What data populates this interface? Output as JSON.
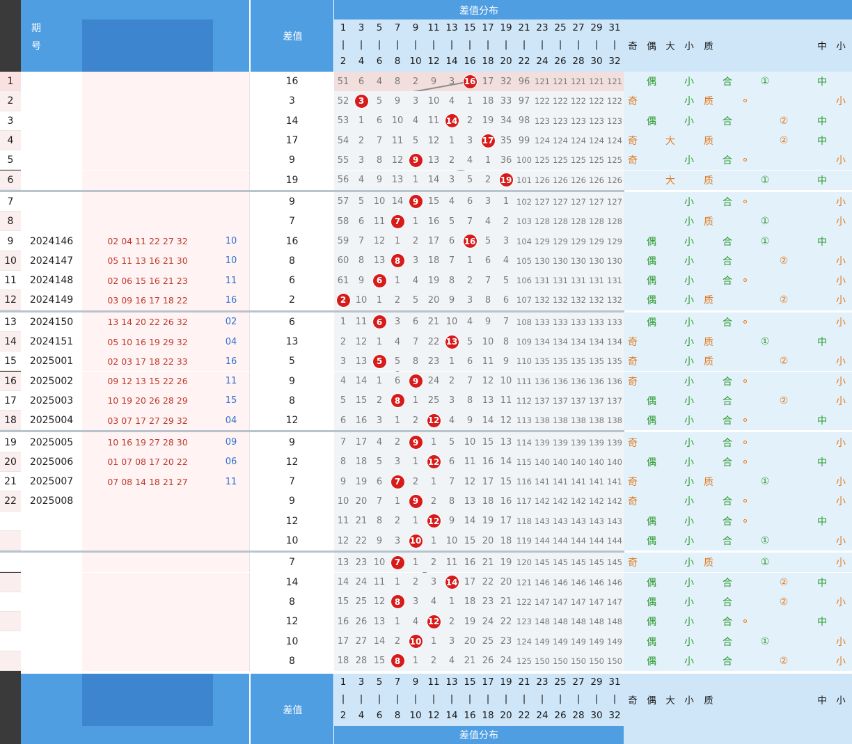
{
  "header": {
    "period_label": "期号",
    "diff_label": "差值",
    "dist_label": "差值分布",
    "cols_top": [
      "1",
      "3",
      "5",
      "7",
      "9",
      "11",
      "13",
      "15",
      "17",
      "19",
      "21",
      "23",
      "25",
      "27",
      "29",
      "31"
    ],
    "cols_bottom": [
      "2",
      "4",
      "6",
      "8",
      "10",
      "12",
      "14",
      "16",
      "18",
      "20",
      "22",
      "24",
      "26",
      "28",
      "30",
      "32"
    ],
    "right_labels": [
      "奇",
      "偶",
      "大",
      "小",
      "质",
      "",
      "",
      "",
      "中",
      "小"
    ]
  },
  "rows": [
    {
      "idx": "1",
      "period": "",
      "nums": "",
      "blue": "",
      "diff": 16,
      "miss": [
        "51",
        "6",
        "4",
        "8",
        "2",
        "9",
        "3",
        "",
        "17",
        "32",
        "96",
        "121",
        "121",
        "121",
        "121",
        "121"
      ],
      "odd": "",
      "even": "偶",
      "big": "",
      "small": "小",
      "prime": "",
      "comp": "合",
      "dot": false,
      "c1": "①",
      "c2": "",
      "mid": "中",
      "sm": ""
    },
    {
      "idx": "2",
      "period": "",
      "nums": "",
      "blue": "",
      "diff": 3,
      "miss": [
        "52",
        "",
        "5",
        "9",
        "3",
        "10",
        "4",
        "1",
        "18",
        "33",
        "97",
        "122",
        "122",
        "122",
        "122",
        "122"
      ],
      "odd": "奇",
      "even": "",
      "big": "",
      "small": "小",
      "prime": "质",
      "comp": "",
      "dot": true,
      "c1": "",
      "c2": "",
      "mid": "",
      "sm": "小"
    },
    {
      "idx": "3",
      "period": "",
      "nums": "",
      "blue": "",
      "diff": 14,
      "miss": [
        "53",
        "1",
        "6",
        "10",
        "4",
        "11",
        "",
        "2",
        "19",
        "34",
        "98",
        "123",
        "123",
        "123",
        "123",
        "123"
      ],
      "odd": "",
      "even": "偶",
      "big": "",
      "small": "小",
      "prime": "",
      "comp": "合",
      "dot": false,
      "c1": "",
      "c2": "②",
      "mid": "中",
      "sm": ""
    },
    {
      "idx": "4",
      "period": "",
      "nums": "",
      "blue": "",
      "diff": 17,
      "miss": [
        "54",
        "2",
        "7",
        "11",
        "5",
        "12",
        "1",
        "3",
        "",
        "35",
        "99",
        "124",
        "124",
        "124",
        "124",
        "124"
      ],
      "odd": "奇",
      "even": "",
      "big": "大",
      "small": "",
      "prime": "质",
      "comp": "",
      "dot": false,
      "c1": "",
      "c2": "②",
      "mid": "中",
      "sm": ""
    },
    {
      "idx": "5",
      "period": "",
      "nums": "",
      "blue": "",
      "diff": 9,
      "miss": [
        "55",
        "3",
        "8",
        "12",
        "",
        "13",
        "2",
        "4",
        "1",
        "36",
        "100",
        "125",
        "125",
        "125",
        "125",
        "125"
      ],
      "odd": "奇",
      "even": "",
      "big": "",
      "small": "小",
      "prime": "",
      "comp": "合",
      "dot": true,
      "c1": "",
      "c2": "",
      "mid": "",
      "sm": "小"
    },
    {
      "idx": "6",
      "period": "",
      "nums": "",
      "blue": "",
      "diff": 19,
      "miss": [
        "56",
        "4",
        "9",
        "13",
        "1",
        "14",
        "3",
        "5",
        "2",
        "",
        "101",
        "126",
        "126",
        "126",
        "126",
        "126"
      ],
      "odd": "",
      "even": "",
      "big": "大",
      "small": "",
      "prime": "质",
      "comp": "",
      "dot": false,
      "c1": "①",
      "c2": "",
      "mid": "中",
      "sm": ""
    },
    {
      "idx": "7",
      "period": "",
      "nums": "",
      "blue": "",
      "diff": 9,
      "miss": [
        "57",
        "5",
        "10",
        "14",
        "",
        "15",
        "4",
        "6",
        "3",
        "1",
        "102",
        "127",
        "127",
        "127",
        "127",
        "127"
      ],
      "odd": "",
      "even": "",
      "big": "",
      "small": "小",
      "prime": "",
      "comp": "合",
      "dot": true,
      "c1": "",
      "c2": "",
      "mid": "",
      "sm": "小"
    },
    {
      "idx": "8",
      "period": "",
      "nums": "",
      "blue": "",
      "diff": 7,
      "miss": [
        "58",
        "6",
        "11",
        "",
        "1",
        "16",
        "5",
        "7",
        "4",
        "2",
        "103",
        "128",
        "128",
        "128",
        "128",
        "128"
      ],
      "odd": "",
      "even": "",
      "big": "",
      "small": "小",
      "prime": "质",
      "comp": "",
      "dot": false,
      "c1": "①",
      "c2": "",
      "mid": "",
      "sm": "小"
    },
    {
      "idx": "9",
      "period": "2024146",
      "nums": "02 04 11 22 27 32",
      "blue": "10",
      "diff": 16,
      "miss": [
        "59",
        "7",
        "12",
        "1",
        "2",
        "17",
        "6",
        "",
        "5",
        "3",
        "104",
        "129",
        "129",
        "129",
        "129",
        "129"
      ],
      "odd": "",
      "even": "偶",
      "big": "",
      "small": "小",
      "prime": "",
      "comp": "合",
      "dot": false,
      "c1": "①",
      "c2": "",
      "mid": "中",
      "sm": ""
    },
    {
      "idx": "10",
      "period": "2024147",
      "nums": "05 11 13 16 21 30",
      "blue": "10",
      "diff": 8,
      "miss": [
        "60",
        "8",
        "13",
        "",
        "3",
        "18",
        "7",
        "1",
        "6",
        "4",
        "105",
        "130",
        "130",
        "130",
        "130",
        "130"
      ],
      "odd": "",
      "even": "偶",
      "big": "",
      "small": "小",
      "prime": "",
      "comp": "合",
      "dot": false,
      "c1": "",
      "c2": "②",
      "mid": "",
      "sm": "小"
    },
    {
      "idx": "11",
      "period": "2024148",
      "nums": "02 06 15 16 21 23",
      "blue": "11",
      "diff": 6,
      "miss": [
        "61",
        "9",
        "",
        "1",
        "4",
        "19",
        "8",
        "2",
        "7",
        "5",
        "106",
        "131",
        "131",
        "131",
        "131",
        "131"
      ],
      "odd": "",
      "even": "偶",
      "big": "",
      "small": "小",
      "prime": "",
      "comp": "合",
      "dot": true,
      "c1": "",
      "c2": "",
      "mid": "",
      "sm": "小"
    },
    {
      "idx": "12",
      "period": "2024149",
      "nums": "03 09 16 17 18 22",
      "blue": "16",
      "diff": 2,
      "miss": [
        "",
        "10",
        "1",
        "2",
        "5",
        "20",
        "9",
        "3",
        "8",
        "6",
        "107",
        "132",
        "132",
        "132",
        "132",
        "132"
      ],
      "odd": "",
      "even": "偶",
      "big": "",
      "small": "小",
      "prime": "质",
      "comp": "",
      "dot": false,
      "c1": "",
      "c2": "②",
      "mid": "",
      "sm": "小"
    },
    {
      "idx": "13",
      "period": "2024150",
      "nums": "13 14 20 22 26 32",
      "blue": "02",
      "diff": 6,
      "miss": [
        "1",
        "11",
        "",
        "3",
        "6",
        "21",
        "10",
        "4",
        "9",
        "7",
        "108",
        "133",
        "133",
        "133",
        "133",
        "133"
      ],
      "odd": "",
      "even": "偶",
      "big": "",
      "small": "小",
      "prime": "",
      "comp": "合",
      "dot": true,
      "c1": "",
      "c2": "",
      "mid": "",
      "sm": "小"
    },
    {
      "idx": "14",
      "period": "2024151",
      "nums": "05 10 16 19 29 32",
      "blue": "04",
      "diff": 13,
      "miss": [
        "2",
        "12",
        "1",
        "4",
        "7",
        "22",
        "",
        "5",
        "10",
        "8",
        "109",
        "134",
        "134",
        "134",
        "134",
        "134"
      ],
      "odd": "奇",
      "even": "",
      "big": "",
      "small": "小",
      "prime": "质",
      "comp": "",
      "dot": false,
      "c1": "①",
      "c2": "",
      "mid": "中",
      "sm": ""
    },
    {
      "idx": "15",
      "period": "2025001",
      "nums": "02 03 17 18 22 33",
      "blue": "16",
      "diff": 5,
      "miss": [
        "3",
        "13",
        "",
        "5",
        "8",
        "23",
        "1",
        "6",
        "11",
        "9",
        "110",
        "135",
        "135",
        "135",
        "135",
        "135"
      ],
      "odd": "奇",
      "even": "",
      "big": "",
      "small": "小",
      "prime": "质",
      "comp": "",
      "dot": false,
      "c1": "",
      "c2": "②",
      "mid": "",
      "sm": "小"
    },
    {
      "idx": "16",
      "period": "2025002",
      "nums": "09 12 13 15 22 26",
      "blue": "11",
      "diff": 9,
      "miss": [
        "4",
        "14",
        "1",
        "6",
        "",
        "24",
        "2",
        "7",
        "12",
        "10",
        "111",
        "136",
        "136",
        "136",
        "136",
        "136"
      ],
      "odd": "奇",
      "even": "",
      "big": "",
      "small": "小",
      "prime": "",
      "comp": "合",
      "dot": true,
      "c1": "",
      "c2": "",
      "mid": "",
      "sm": "小"
    },
    {
      "idx": "17",
      "period": "2025003",
      "nums": "10 19 20 26 28 29",
      "blue": "15",
      "diff": 8,
      "miss": [
        "5",
        "15",
        "2",
        "",
        "1",
        "25",
        "3",
        "8",
        "13",
        "11",
        "112",
        "137",
        "137",
        "137",
        "137",
        "137"
      ],
      "odd": "",
      "even": "偶",
      "big": "",
      "small": "小",
      "prime": "",
      "comp": "合",
      "dot": false,
      "c1": "",
      "c2": "②",
      "mid": "",
      "sm": "小"
    },
    {
      "idx": "18",
      "period": "2025004",
      "nums": "03 07 17 27 29 32",
      "blue": "04",
      "diff": 12,
      "miss": [
        "6",
        "16",
        "3",
        "1",
        "2",
        "",
        "4",
        "9",
        "14",
        "12",
        "113",
        "138",
        "138",
        "138",
        "138",
        "138"
      ],
      "odd": "",
      "even": "偶",
      "big": "",
      "small": "小",
      "prime": "",
      "comp": "合",
      "dot": true,
      "c1": "",
      "c2": "",
      "mid": "中",
      "sm": ""
    },
    {
      "idx": "19",
      "period": "2025005",
      "nums": "10 16 19 27 28 30",
      "blue": "09",
      "diff": 9,
      "miss": [
        "7",
        "17",
        "4",
        "2",
        "",
        "1",
        "5",
        "10",
        "15",
        "13",
        "114",
        "139",
        "139",
        "139",
        "139",
        "139"
      ],
      "odd": "奇",
      "even": "",
      "big": "",
      "small": "小",
      "prime": "",
      "comp": "合",
      "dot": true,
      "c1": "",
      "c2": "",
      "mid": "",
      "sm": "小"
    },
    {
      "idx": "20",
      "period": "2025006",
      "nums": "01 07 08 17 20 22",
      "blue": "06",
      "diff": 12,
      "miss": [
        "8",
        "18",
        "5",
        "3",
        "1",
        "",
        "6",
        "11",
        "16",
        "14",
        "115",
        "140",
        "140",
        "140",
        "140",
        "140"
      ],
      "odd": "",
      "even": "偶",
      "big": "",
      "small": "小",
      "prime": "",
      "comp": "合",
      "dot": true,
      "c1": "",
      "c2": "",
      "mid": "中",
      "sm": ""
    },
    {
      "idx": "21",
      "period": "2025007",
      "nums": "07 08 14 18 21 27",
      "blue": "11",
      "diff": 7,
      "miss": [
        "9",
        "19",
        "6",
        "",
        "2",
        "1",
        "7",
        "12",
        "17",
        "15",
        "116",
        "141",
        "141",
        "141",
        "141",
        "141"
      ],
      "odd": "奇",
      "even": "",
      "big": "",
      "small": "小",
      "prime": "质",
      "comp": "",
      "dot": false,
      "c1": "①",
      "c2": "",
      "mid": "",
      "sm": "小"
    },
    {
      "idx": "22",
      "period": "2025008",
      "nums": "",
      "blue": "",
      "diff": 9,
      "miss": [
        "10",
        "20",
        "7",
        "1",
        "",
        "2",
        "8",
        "13",
        "18",
        "16",
        "117",
        "142",
        "142",
        "142",
        "142",
        "142"
      ],
      "odd": "奇",
      "even": "",
      "big": "",
      "small": "小",
      "prime": "",
      "comp": "合",
      "dot": true,
      "c1": "",
      "c2": "",
      "mid": "",
      "sm": "小"
    },
    {
      "idx": "",
      "period": "",
      "nums": "",
      "blue": "",
      "diff": 12,
      "miss": [
        "11",
        "21",
        "8",
        "2",
        "1",
        "",
        "9",
        "14",
        "19",
        "17",
        "118",
        "143",
        "143",
        "143",
        "143",
        "143"
      ],
      "odd": "",
      "even": "偶",
      "big": "",
      "small": "小",
      "prime": "",
      "comp": "合",
      "dot": true,
      "c1": "",
      "c2": "",
      "mid": "中",
      "sm": ""
    },
    {
      "idx": "",
      "period": "",
      "nums": "",
      "blue": "",
      "diff": 10,
      "miss": [
        "12",
        "22",
        "9",
        "3",
        "",
        "1",
        "10",
        "15",
        "20",
        "18",
        "119",
        "144",
        "144",
        "144",
        "144",
        "144"
      ],
      "odd": "",
      "even": "偶",
      "big": "",
      "small": "小",
      "prime": "",
      "comp": "合",
      "dot": false,
      "c1": "①",
      "c2": "",
      "mid": "",
      "sm": "小"
    },
    {
      "idx": "",
      "period": "",
      "nums": "",
      "blue": "",
      "diff": 7,
      "miss": [
        "13",
        "23",
        "10",
        "",
        "1",
        "2",
        "11",
        "16",
        "21",
        "19",
        "120",
        "145",
        "145",
        "145",
        "145",
        "145"
      ],
      "odd": "奇",
      "even": "",
      "big": "",
      "small": "小",
      "prime": "质",
      "comp": "",
      "dot": false,
      "c1": "①",
      "c2": "",
      "mid": "",
      "sm": "小"
    },
    {
      "idx": "",
      "period": "",
      "nums": "",
      "blue": "",
      "diff": 14,
      "miss": [
        "14",
        "24",
        "11",
        "1",
        "2",
        "3",
        "",
        "17",
        "22",
        "20",
        "121",
        "146",
        "146",
        "146",
        "146",
        "146"
      ],
      "odd": "",
      "even": "偶",
      "big": "",
      "small": "小",
      "prime": "",
      "comp": "合",
      "dot": false,
      "c1": "",
      "c2": "②",
      "mid": "中",
      "sm": ""
    },
    {
      "idx": "",
      "period": "",
      "nums": "",
      "blue": "",
      "diff": 8,
      "miss": [
        "15",
        "25",
        "12",
        "",
        "3",
        "4",
        "1",
        "18",
        "23",
        "21",
        "122",
        "147",
        "147",
        "147",
        "147",
        "147"
      ],
      "odd": "",
      "even": "偶",
      "big": "",
      "small": "小",
      "prime": "",
      "comp": "合",
      "dot": false,
      "c1": "",
      "c2": "②",
      "mid": "",
      "sm": "小"
    },
    {
      "idx": "",
      "period": "",
      "nums": "",
      "blue": "",
      "diff": 12,
      "miss": [
        "16",
        "26",
        "13",
        "1",
        "4",
        "",
        "2",
        "19",
        "24",
        "22",
        "123",
        "148",
        "148",
        "148",
        "148",
        "148"
      ],
      "odd": "",
      "even": "偶",
      "big": "",
      "small": "小",
      "prime": "",
      "comp": "合",
      "dot": true,
      "c1": "",
      "c2": "",
      "mid": "中",
      "sm": ""
    },
    {
      "idx": "",
      "period": "",
      "nums": "",
      "blue": "",
      "diff": 10,
      "miss": [
        "17",
        "27",
        "14",
        "2",
        "",
        "1",
        "3",
        "20",
        "25",
        "23",
        "124",
        "149",
        "149",
        "149",
        "149",
        "149"
      ],
      "odd": "",
      "even": "偶",
      "big": "",
      "small": "小",
      "prime": "",
      "comp": "合",
      "dot": false,
      "c1": "①",
      "c2": "",
      "mid": "",
      "sm": "小"
    },
    {
      "idx": "",
      "period": "",
      "nums": "",
      "blue": "",
      "diff": 8,
      "miss": [
        "18",
        "28",
        "15",
        "",
        "1",
        "2",
        "4",
        "21",
        "26",
        "24",
        "125",
        "150",
        "150",
        "150",
        "150",
        "150"
      ],
      "odd": "",
      "even": "偶",
      "big": "",
      "small": "小",
      "prime": "",
      "comp": "合",
      "dot": false,
      "c1": "",
      "c2": "②",
      "mid": "",
      "sm": "小"
    }
  ]
}
